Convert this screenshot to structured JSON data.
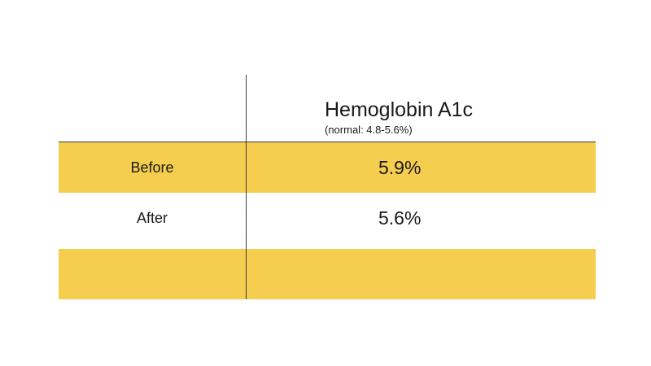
{
  "chart_data": {
    "type": "table",
    "column_header": "Hemoglobin A1c",
    "column_subheader": "(normal: 4.8-5.6%)",
    "rows": [
      {
        "label": "Before",
        "value": "5.9%"
      },
      {
        "label": "After",
        "value": "5.6%"
      },
      {
        "label": "",
        "value": ""
      }
    ]
  },
  "colors": {
    "band": "#f5cd4f",
    "rule": "#3a3a3a"
  }
}
